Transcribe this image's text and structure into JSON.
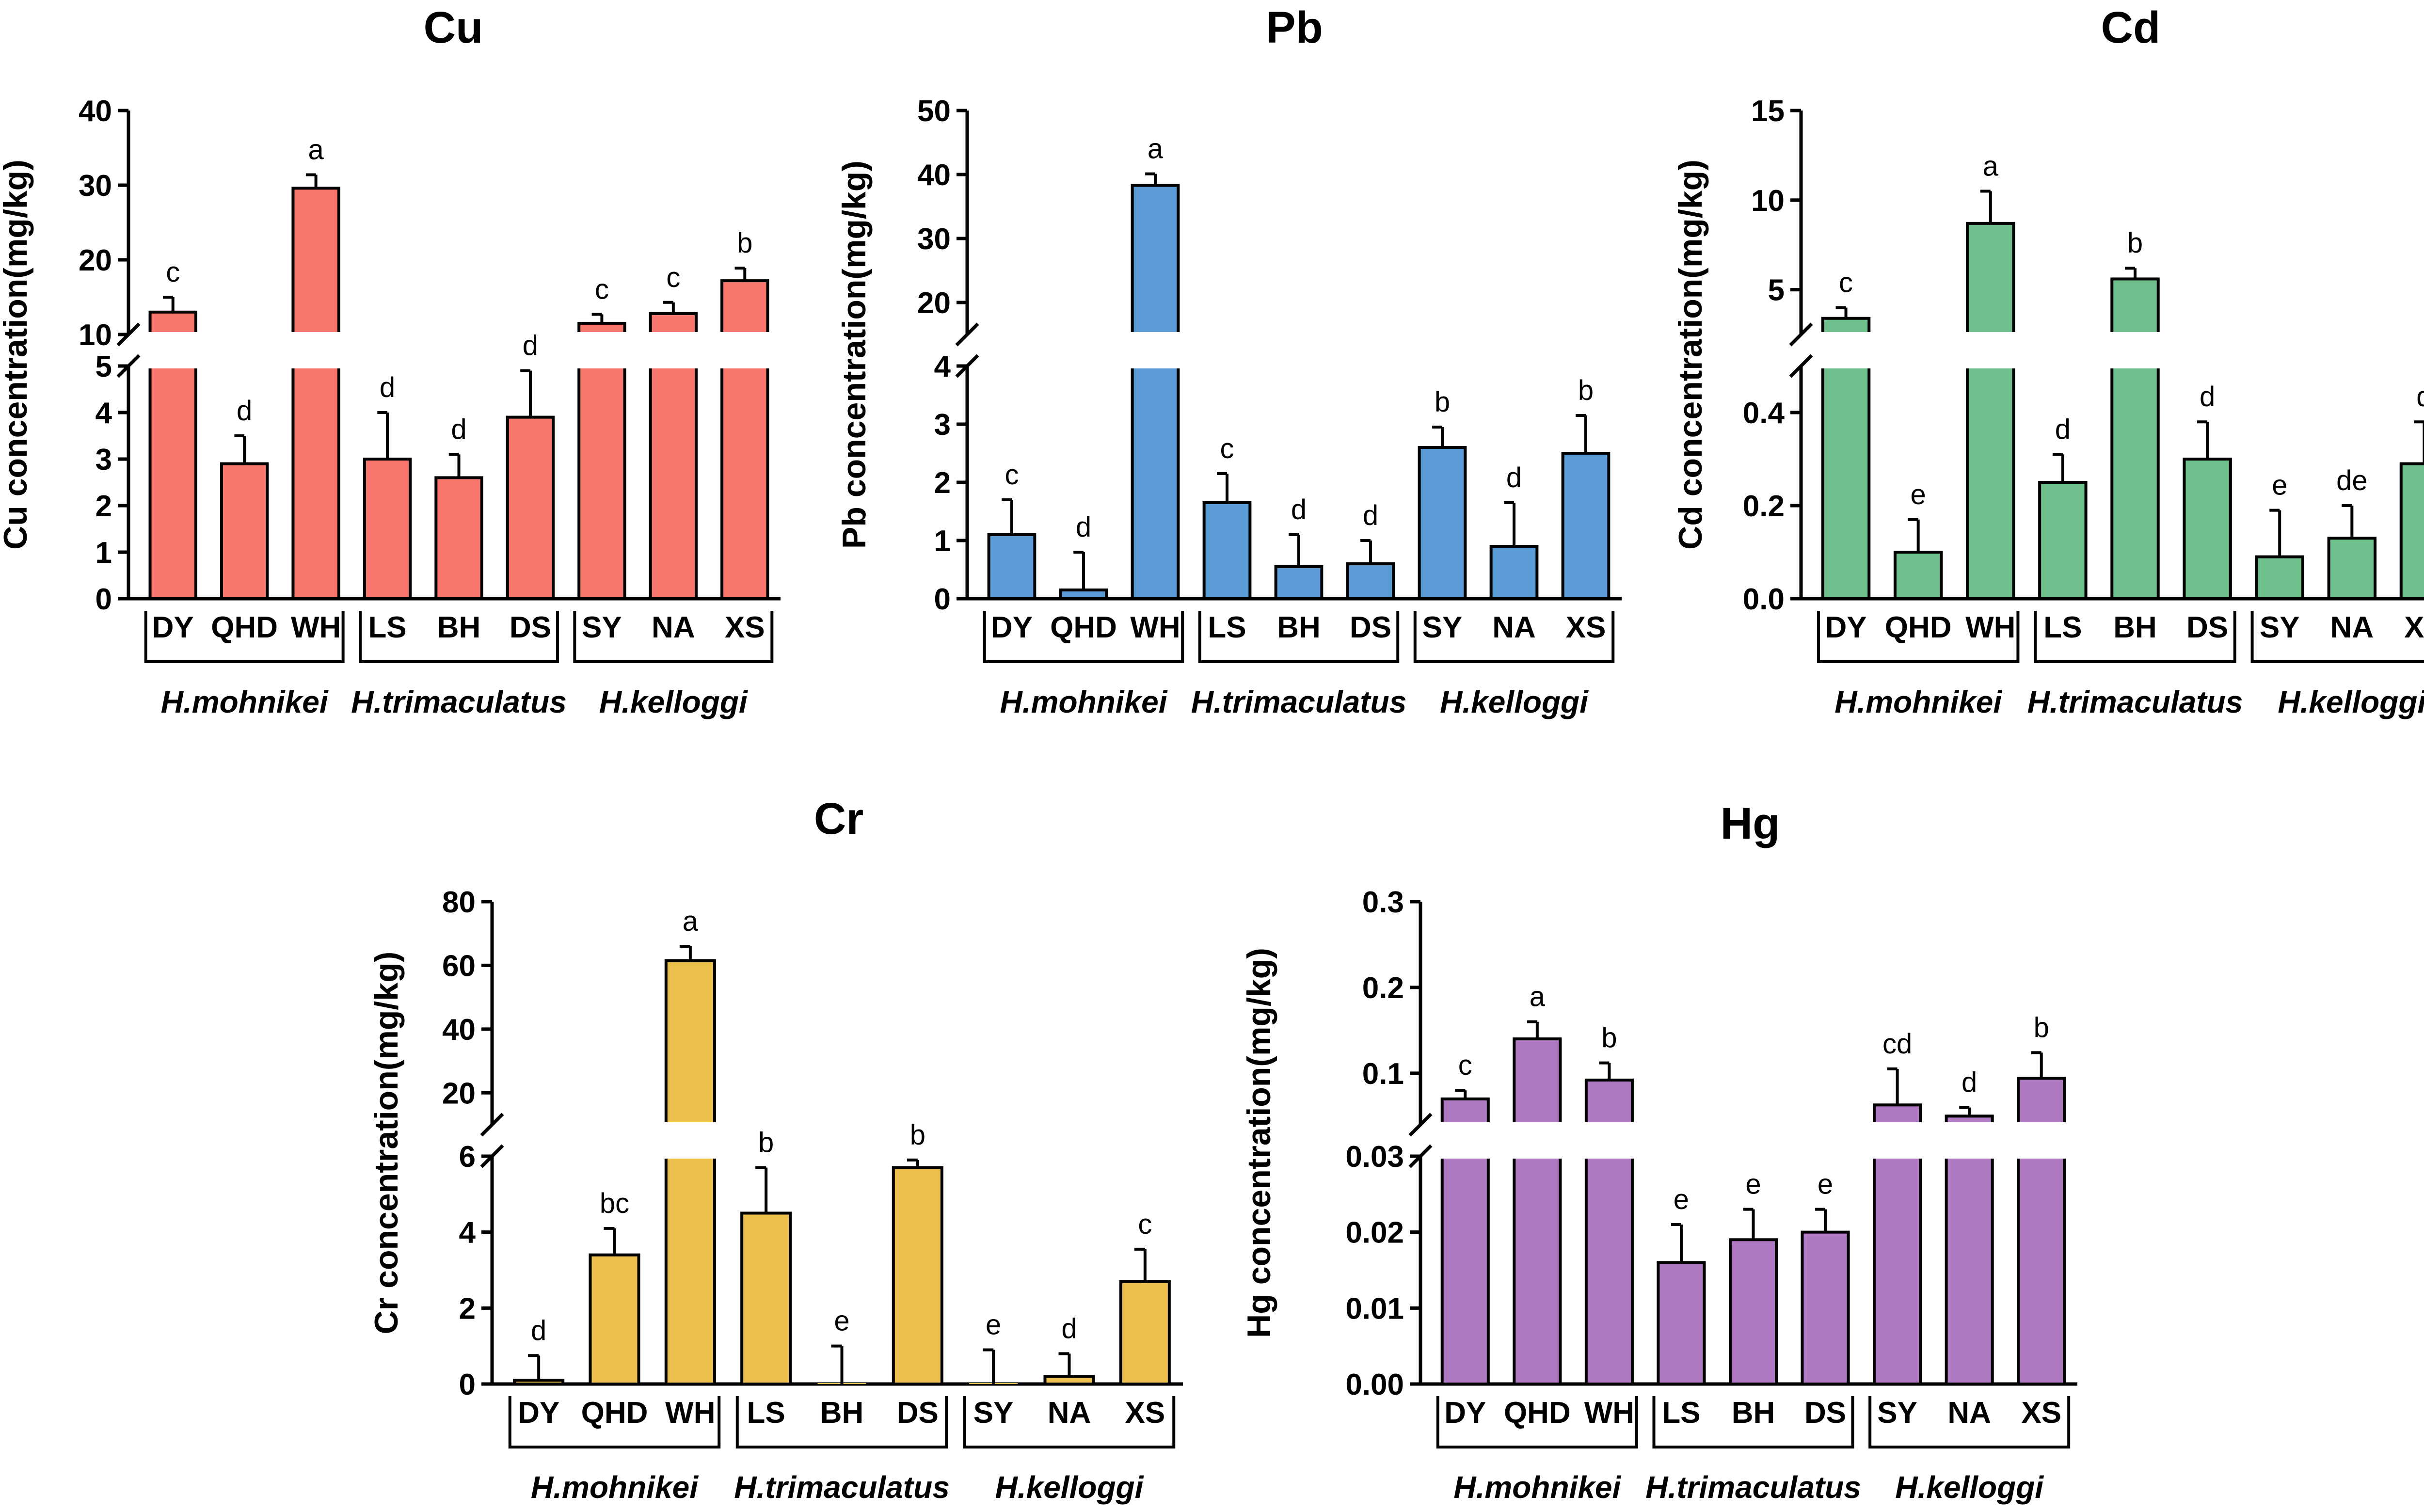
{
  "colors": {
    "Cu": "#F8766D",
    "Pb": "#5B9BD5",
    "Cd": "#70C08E",
    "Cr": "#EBC04D",
    "Hg": "#B07AC2"
  },
  "chart_data": [
    {
      "type": "bar",
      "title": "Cu",
      "ylabel": "Cu concentration(mg/kg)",
      "categories": [
        "DY",
        "QHD",
        "WH",
        "LS",
        "BH",
        "DS",
        "SY",
        "NA",
        "XS"
      ],
      "groups": [
        "H.mohnikei",
        "H.trimaculatus",
        "H.kelloggi"
      ],
      "values": [
        13.0,
        2.9,
        29.6,
        3.0,
        2.6,
        3.9,
        11.5,
        12.8,
        17.2
      ],
      "errors": [
        2.0,
        0.6,
        1.8,
        1.0,
        0.5,
        1.0,
        1.2,
        1.5,
        1.7
      ],
      "letters": [
        "c",
        "d",
        "a",
        "d",
        "d",
        "d",
        "c",
        "c",
        "b"
      ],
      "lower_range": [
        0,
        5
      ],
      "upper_range": [
        10,
        40
      ],
      "lower_ticks": [
        "0",
        "1",
        "2",
        "3",
        "4",
        "5"
      ],
      "upper_ticks": [
        "10",
        "20",
        "30",
        "40"
      ]
    },
    {
      "type": "bar",
      "title": "Pb",
      "ylabel": "Pb concentration(mg/kg)",
      "categories": [
        "DY",
        "QHD",
        "WH",
        "LS",
        "BH",
        "DS",
        "SY",
        "NA",
        "XS"
      ],
      "groups": [
        "H.mohnikei",
        "H.trimaculatus",
        "H.kelloggi"
      ],
      "values": [
        1.1,
        0.15,
        38.3,
        1.65,
        0.55,
        0.6,
        2.6,
        0.9,
        2.5
      ],
      "errors": [
        0.6,
        0.65,
        1.8,
        0.5,
        0.55,
        0.4,
        0.35,
        0.75,
        0.65
      ],
      "letters": [
        "c",
        "d",
        "a",
        "c",
        "d",
        "d",
        "b",
        "d",
        "b"
      ],
      "lower_range": [
        0,
        4
      ],
      "upper_range": [
        15,
        50
      ],
      "lower_ticks": [
        "0",
        "1",
        "2",
        "3",
        "4"
      ],
      "upper_ticks": [
        "20",
        "30",
        "40",
        "50"
      ]
    },
    {
      "type": "bar",
      "title": "Cd",
      "ylabel": "Cd concentration(mg/kg)",
      "categories": [
        "DY",
        "QHD",
        "WH",
        "LS",
        "BH",
        "DS",
        "SY",
        "NA",
        "XS"
      ],
      "groups": [
        "H.mohnikei",
        "H.trimaculatus",
        "H.kelloggi"
      ],
      "values": [
        3.4,
        0.1,
        8.7,
        0.25,
        5.6,
        0.3,
        0.09,
        0.13,
        0.29
      ],
      "errors": [
        0.6,
        0.07,
        1.8,
        0.06,
        0.6,
        0.08,
        0.1,
        0.07,
        0.09
      ],
      "letters": [
        "c",
        "e",
        "a",
        "d",
        "b",
        "d",
        "e",
        "de",
        "d"
      ],
      "lower_range": [
        0,
        0.5
      ],
      "upper_range": [
        2.5,
        15
      ],
      "lower_ticks": [
        "0.0",
        "0.2",
        "0.4"
      ],
      "upper_ticks": [
        "5",
        "10",
        "15"
      ]
    },
    {
      "type": "bar",
      "title": "Cr",
      "ylabel": "Cr concentration(mg/kg)",
      "categories": [
        "DY",
        "QHD",
        "WH",
        "LS",
        "BH",
        "DS",
        "SY",
        "NA",
        "XS"
      ],
      "groups": [
        "H.mohnikei",
        "H.trimaculatus",
        "H.kelloggi"
      ],
      "values": [
        0.1,
        3.4,
        61.5,
        4.5,
        0.0,
        5.7,
        0.0,
        0.2,
        2.7
      ],
      "errors": [
        0.65,
        0.7,
        4.5,
        1.2,
        1.0,
        0.2,
        0.9,
        0.6,
        0.85
      ],
      "letters": [
        "d",
        "bc",
        "a",
        "b",
        "e",
        "b",
        "e",
        "d",
        "c"
      ],
      "lower_range": [
        0,
        6
      ],
      "upper_range": [
        10,
        80
      ],
      "lower_ticks": [
        "0",
        "2",
        "4",
        "6"
      ],
      "upper_ticks": [
        "20",
        "40",
        "60",
        "80"
      ]
    },
    {
      "type": "bar",
      "title": "Hg",
      "ylabel": "Hg concentration(mg/kg)",
      "categories": [
        "DY",
        "QHD",
        "WH",
        "LS",
        "BH",
        "DS",
        "SY",
        "NA",
        "XS"
      ],
      "groups": [
        "H.mohnikei",
        "H.trimaculatus",
        "H.kelloggi"
      ],
      "values": [
        0.07,
        0.14,
        0.092,
        0.016,
        0.019,
        0.02,
        0.063,
        0.05,
        0.094
      ],
      "errors": [
        0.01,
        0.02,
        0.02,
        0.005,
        0.004,
        0.003,
        0.042,
        0.01,
        0.03
      ],
      "letters": [
        "c",
        "a",
        "b",
        "e",
        "e",
        "e",
        "cd",
        "d",
        "b"
      ],
      "lower_range": [
        0,
        0.03
      ],
      "upper_range": [
        0.04,
        0.3
      ],
      "lower_ticks": [
        "0.00",
        "0.01",
        "0.02",
        "0.03"
      ],
      "upper_ticks": [
        "0.1",
        "0.2",
        "0.3"
      ]
    }
  ]
}
